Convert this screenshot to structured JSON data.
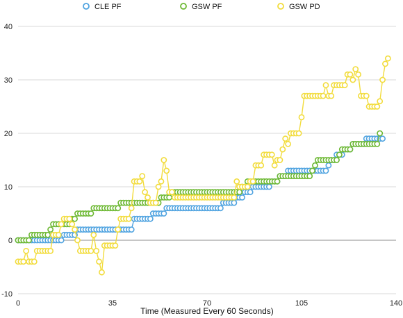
{
  "chart_data": {
    "type": "line",
    "title": "",
    "xlabel": "Time (Measured Every 60 Seconds)",
    "ylabel": "",
    "xlim": [
      0,
      140
    ],
    "ylim": [
      -10,
      40
    ],
    "xticks": [
      0,
      35,
      70,
      105,
      140
    ],
    "yticks": [
      -10,
      0,
      10,
      20,
      30,
      40
    ],
    "grid": true,
    "legend_position": "top",
    "series": [
      {
        "name": "CLE PF",
        "color": "#4fa3e0",
        "segments": [
          [
            0,
            0
          ],
          [
            16,
            0
          ],
          [
            17,
            1
          ],
          [
            21,
            1
          ],
          [
            22,
            2
          ],
          [
            42,
            2
          ],
          [
            43,
            4
          ],
          [
            49,
            4
          ],
          [
            50,
            5
          ],
          [
            54,
            5
          ],
          [
            55,
            6
          ],
          [
            75,
            6
          ],
          [
            76,
            7
          ],
          [
            80,
            7
          ],
          [
            81,
            8
          ],
          [
            83,
            8
          ],
          [
            84,
            9
          ],
          [
            86,
            9
          ],
          [
            87,
            10
          ],
          [
            93,
            10
          ],
          [
            94,
            11
          ],
          [
            96,
            11
          ],
          [
            97,
            12
          ],
          [
            99,
            12
          ],
          [
            100,
            13
          ],
          [
            114,
            13
          ],
          [
            115,
            14
          ],
          [
            116,
            15
          ],
          [
            117,
            15
          ],
          [
            118,
            16
          ],
          [
            120,
            16
          ],
          [
            121,
            17
          ],
          [
            123,
            17
          ],
          [
            124,
            18
          ],
          [
            128,
            18
          ],
          [
            129,
            19
          ],
          [
            135,
            19
          ]
        ]
      },
      {
        "name": "GSW PF",
        "color": "#6cb832",
        "segments": [
          [
            0,
            0
          ],
          [
            4,
            0
          ],
          [
            5,
            1
          ],
          [
            11,
            1
          ],
          [
            12,
            2
          ],
          [
            13,
            3
          ],
          [
            19,
            3
          ],
          [
            20,
            4
          ],
          [
            21,
            4
          ],
          [
            22,
            5
          ],
          [
            27,
            5
          ],
          [
            28,
            6
          ],
          [
            37,
            6
          ],
          [
            38,
            7
          ],
          [
            52,
            7
          ],
          [
            53,
            8
          ],
          [
            56,
            8
          ],
          [
            57,
            9
          ],
          [
            82,
            9
          ],
          [
            83,
            10
          ],
          [
            84,
            10
          ],
          [
            85,
            11
          ],
          [
            96,
            11
          ],
          [
            97,
            12
          ],
          [
            98,
            12
          ],
          [
            99,
            12
          ],
          [
            108,
            12
          ],
          [
            109,
            13
          ],
          [
            110,
            14
          ],
          [
            111,
            15
          ],
          [
            118,
            15
          ],
          [
            119,
            16
          ],
          [
            120,
            17
          ],
          [
            123,
            17
          ],
          [
            124,
            18
          ],
          [
            133,
            18
          ],
          [
            134,
            20
          ]
        ]
      },
      {
        "name": "GSW PD",
        "color": "#f2dc3c",
        "segments": [
          [
            0,
            -4
          ],
          [
            2,
            -4
          ],
          [
            3,
            -2
          ],
          [
            4,
            -4
          ],
          [
            6,
            -4
          ],
          [
            7,
            -2
          ],
          [
            12,
            -2
          ],
          [
            13,
            1
          ],
          [
            15,
            1
          ],
          [
            16,
            3
          ],
          [
            17,
            4
          ],
          [
            19,
            4
          ],
          [
            20,
            3
          ],
          [
            21,
            2
          ],
          [
            22,
            0
          ],
          [
            23,
            -2
          ],
          [
            27,
            -2
          ],
          [
            28,
            1
          ],
          [
            29,
            -2
          ],
          [
            30,
            -4
          ],
          [
            31,
            -6
          ],
          [
            32,
            -1
          ],
          [
            36,
            -1
          ],
          [
            37,
            2
          ],
          [
            38,
            4
          ],
          [
            42,
            6
          ],
          [
            43,
            11
          ],
          [
            45,
            11
          ],
          [
            46,
            12
          ],
          [
            47,
            9
          ],
          [
            48,
            8
          ],
          [
            49,
            7
          ],
          [
            51,
            7
          ],
          [
            52,
            10
          ],
          [
            53,
            11
          ],
          [
            54,
            15
          ],
          [
            55,
            13
          ],
          [
            56,
            9
          ],
          [
            58,
            8
          ],
          [
            80,
            8
          ],
          [
            81,
            11
          ],
          [
            82,
            10
          ],
          [
            85,
            10
          ],
          [
            86,
            11
          ],
          [
            88,
            14
          ],
          [
            90,
            14
          ],
          [
            91,
            16
          ],
          [
            94,
            16
          ],
          [
            95,
            14
          ],
          [
            96,
            15
          ],
          [
            98,
            17
          ],
          [
            99,
            19
          ],
          [
            100,
            18
          ],
          [
            101,
            20
          ],
          [
            104,
            20
          ],
          [
            105,
            23
          ],
          [
            106,
            27
          ],
          [
            113,
            27
          ],
          [
            114,
            29
          ],
          [
            115,
            27
          ],
          [
            116,
            27
          ],
          [
            117,
            29
          ],
          [
            121,
            29
          ],
          [
            122,
            31
          ],
          [
            123,
            31
          ],
          [
            124,
            30
          ],
          [
            125,
            32
          ],
          [
            126,
            31
          ],
          [
            127,
            27
          ],
          [
            129,
            27
          ],
          [
            130,
            25
          ],
          [
            133,
            25
          ],
          [
            134,
            26
          ],
          [
            135,
            30
          ],
          [
            136,
            33
          ],
          [
            137,
            34
          ]
        ]
      }
    ]
  }
}
